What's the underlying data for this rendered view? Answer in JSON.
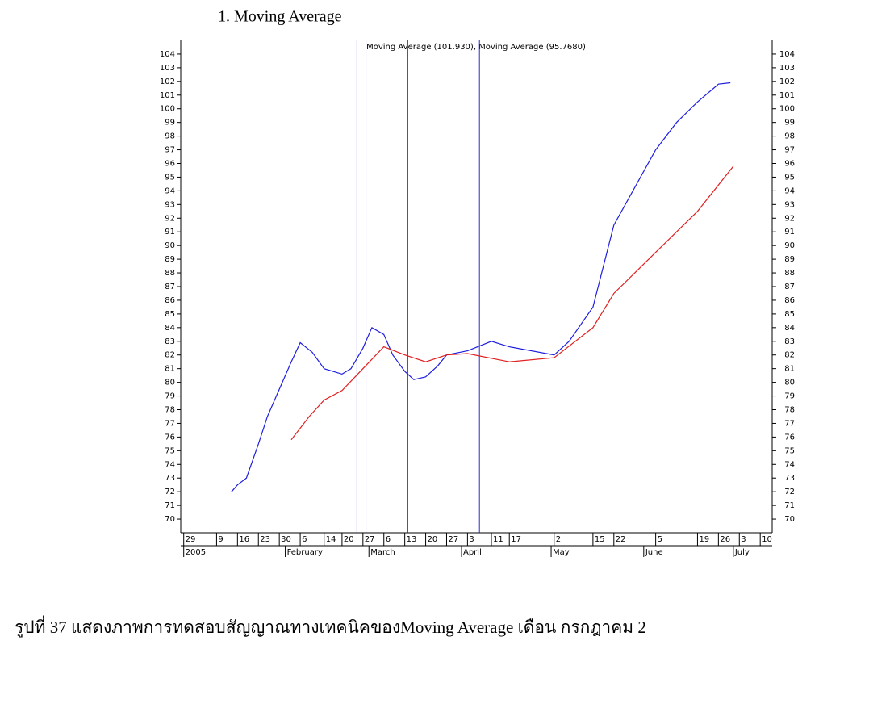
{
  "heading": "1.   Moving Average",
  "caption": "รูปที่ 37 แสดงภาพการทดสอบสัญญาณทางเทคนิคของMoving Average เดือน กรกฎาคม 2",
  "chart_data": {
    "type": "line",
    "annotation": "Moving Average (101.930), Moving Average (95.7680)",
    "xlim": [
      "2004-12-28",
      "2005-07-14"
    ],
    "ylim": [
      69,
      105
    ],
    "yticks": [
      70,
      71,
      72,
      73,
      74,
      75,
      76,
      77,
      78,
      79,
      80,
      81,
      82,
      83,
      84,
      85,
      86,
      87,
      88,
      89,
      90,
      91,
      92,
      93,
      94,
      95,
      96,
      97,
      98,
      99,
      100,
      101,
      102,
      103,
      104
    ],
    "xticks": [
      {
        "value": "2004-12-29",
        "label": "29"
      },
      {
        "value": "2005-01-09",
        "label": "9"
      },
      {
        "value": "2005-01-16",
        "label": "16"
      },
      {
        "value": "2005-01-23",
        "label": "23"
      },
      {
        "value": "2005-01-30",
        "label": "30"
      },
      {
        "value": "2005-02-06",
        "label": "6"
      },
      {
        "value": "2005-02-14",
        "label": "14"
      },
      {
        "value": "2005-02-20",
        "label": "20"
      },
      {
        "value": "2005-02-27",
        "label": "27"
      },
      {
        "value": "2005-03-06",
        "label": "6"
      },
      {
        "value": "2005-03-13",
        "label": "13"
      },
      {
        "value": "2005-03-20",
        "label": "20"
      },
      {
        "value": "2005-03-27",
        "label": "27"
      },
      {
        "value": "2005-04-03",
        "label": "3"
      },
      {
        "value": "2005-04-11",
        "label": "11"
      },
      {
        "value": "2005-04-17",
        "label": "17"
      },
      {
        "value": "2005-05-02",
        "label": "2"
      },
      {
        "value": "2005-05-15",
        "label": "15"
      },
      {
        "value": "2005-05-22",
        "label": "22"
      },
      {
        "value": "2005-06-05",
        "label": "5"
      },
      {
        "value": "2005-06-19",
        "label": "19"
      },
      {
        "value": "2005-06-26",
        "label": "26"
      },
      {
        "value": "2005-07-03",
        "label": "3"
      },
      {
        "value": "2005-07-10",
        "label": "10"
      }
    ],
    "periods": [
      {
        "value": "2004-12-29",
        "label": "2005"
      },
      {
        "value": "2005-02-01",
        "label": "February"
      },
      {
        "value": "2005-03-01",
        "label": "March"
      },
      {
        "value": "2005-04-01",
        "label": "April"
      },
      {
        "value": "2005-05-01",
        "label": "May"
      },
      {
        "value": "2005-06-01",
        "label": "June"
      },
      {
        "value": "2005-07-01",
        "label": "July"
      }
    ],
    "signals": {
      "color": "#2b2bd0",
      "x": [
        "2005-02-25",
        "2005-02-28",
        "2005-03-14",
        "2005-04-07"
      ]
    },
    "series": [
      {
        "color": "#1f1fe0",
        "x": [
          "2005-01-14",
          "2005-01-16",
          "2005-01-19",
          "2005-01-23",
          "2005-01-26",
          "2005-01-30",
          "2005-02-03",
          "2005-02-06",
          "2005-02-10",
          "2005-02-14",
          "2005-02-17",
          "2005-02-20",
          "2005-02-23",
          "2005-02-27",
          "2005-03-02",
          "2005-03-06",
          "2005-03-09",
          "2005-03-13",
          "2005-03-16",
          "2005-03-20",
          "2005-03-24",
          "2005-03-27",
          "2005-04-03",
          "2005-04-11",
          "2005-04-17",
          "2005-05-02",
          "2005-05-07",
          "2005-05-15",
          "2005-05-22",
          "2005-06-05",
          "2005-06-12",
          "2005-06-19",
          "2005-06-26",
          "2005-06-30"
        ],
        "values": [
          72.0,
          72.5,
          73.0,
          75.5,
          77.5,
          79.5,
          81.5,
          82.9,
          82.2,
          81.0,
          80.8,
          80.6,
          81.0,
          82.5,
          84.0,
          83.5,
          82.0,
          80.8,
          80.2,
          80.4,
          81.2,
          82.0,
          82.3,
          83.0,
          82.6,
          82.0,
          83.0,
          85.5,
          91.5,
          97.0,
          99.0,
          100.5,
          101.8,
          101.9
        ]
      },
      {
        "color": "#e01f1f",
        "x": [
          "2005-02-03",
          "2005-02-09",
          "2005-02-14",
          "2005-02-20",
          "2005-02-27",
          "2005-03-06",
          "2005-03-13",
          "2005-03-20",
          "2005-03-27",
          "2005-04-03",
          "2005-04-17",
          "2005-05-02",
          "2005-05-15",
          "2005-05-22",
          "2005-06-05",
          "2005-06-19",
          "2005-07-01"
        ],
        "values": [
          75.8,
          77.5,
          78.7,
          79.4,
          81.0,
          82.6,
          82.0,
          81.5,
          82.0,
          82.1,
          81.5,
          81.8,
          84.0,
          86.5,
          89.5,
          92.5,
          95.8
        ]
      }
    ]
  }
}
